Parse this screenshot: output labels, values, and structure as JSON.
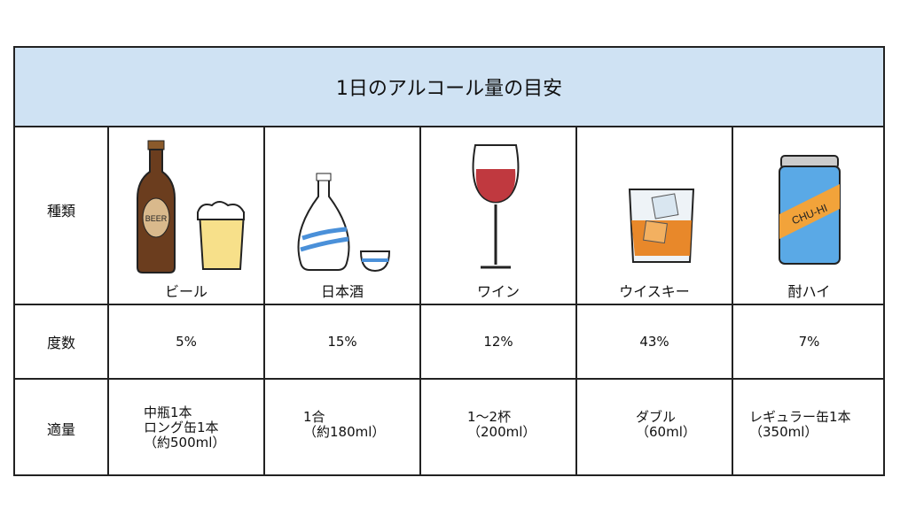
{
  "title": "1日のアルコール量の目安",
  "row_labels": {
    "type": "種類",
    "abv": "度数",
    "amount": "適量"
  },
  "drinks": [
    {
      "name": "ビール",
      "abv": "5%",
      "amount": [
        "中瓶1本",
        "ロング缶1本",
        "（約500ml）"
      ],
      "label": "BEER",
      "icon": "beer-bottle-and-glass-icon"
    },
    {
      "name": "日本酒",
      "abv": "15%",
      "amount": [
        "1合",
        "（約180ml）"
      ],
      "icon": "sake-flask-and-cup-icon"
    },
    {
      "name": "ワイン",
      "abv": "12%",
      "amount": [
        "1～2杯",
        "（200ml）"
      ],
      "icon": "wine-glass-icon"
    },
    {
      "name": "ウイスキー",
      "abv": "43%",
      "amount": [
        "ダブル",
        "（60ml）"
      ],
      "icon": "whisky-rock-glass-icon"
    },
    {
      "name": "酎ハイ",
      "abv": "7%",
      "amount": [
        "レギュラー缶1本",
        "（350ml）"
      ],
      "label": "CHU-HI",
      "icon": "chuhai-can-icon"
    }
  ],
  "colors": {
    "header_bg": "#cfe2f3",
    "beer_bottle": "#6b3d1e",
    "sake_stripe": "#4a90d9",
    "wine": "#c0393f",
    "whisky": "#e8882a",
    "can": "#5aa9e6",
    "can_band": "#f2a33a"
  }
}
